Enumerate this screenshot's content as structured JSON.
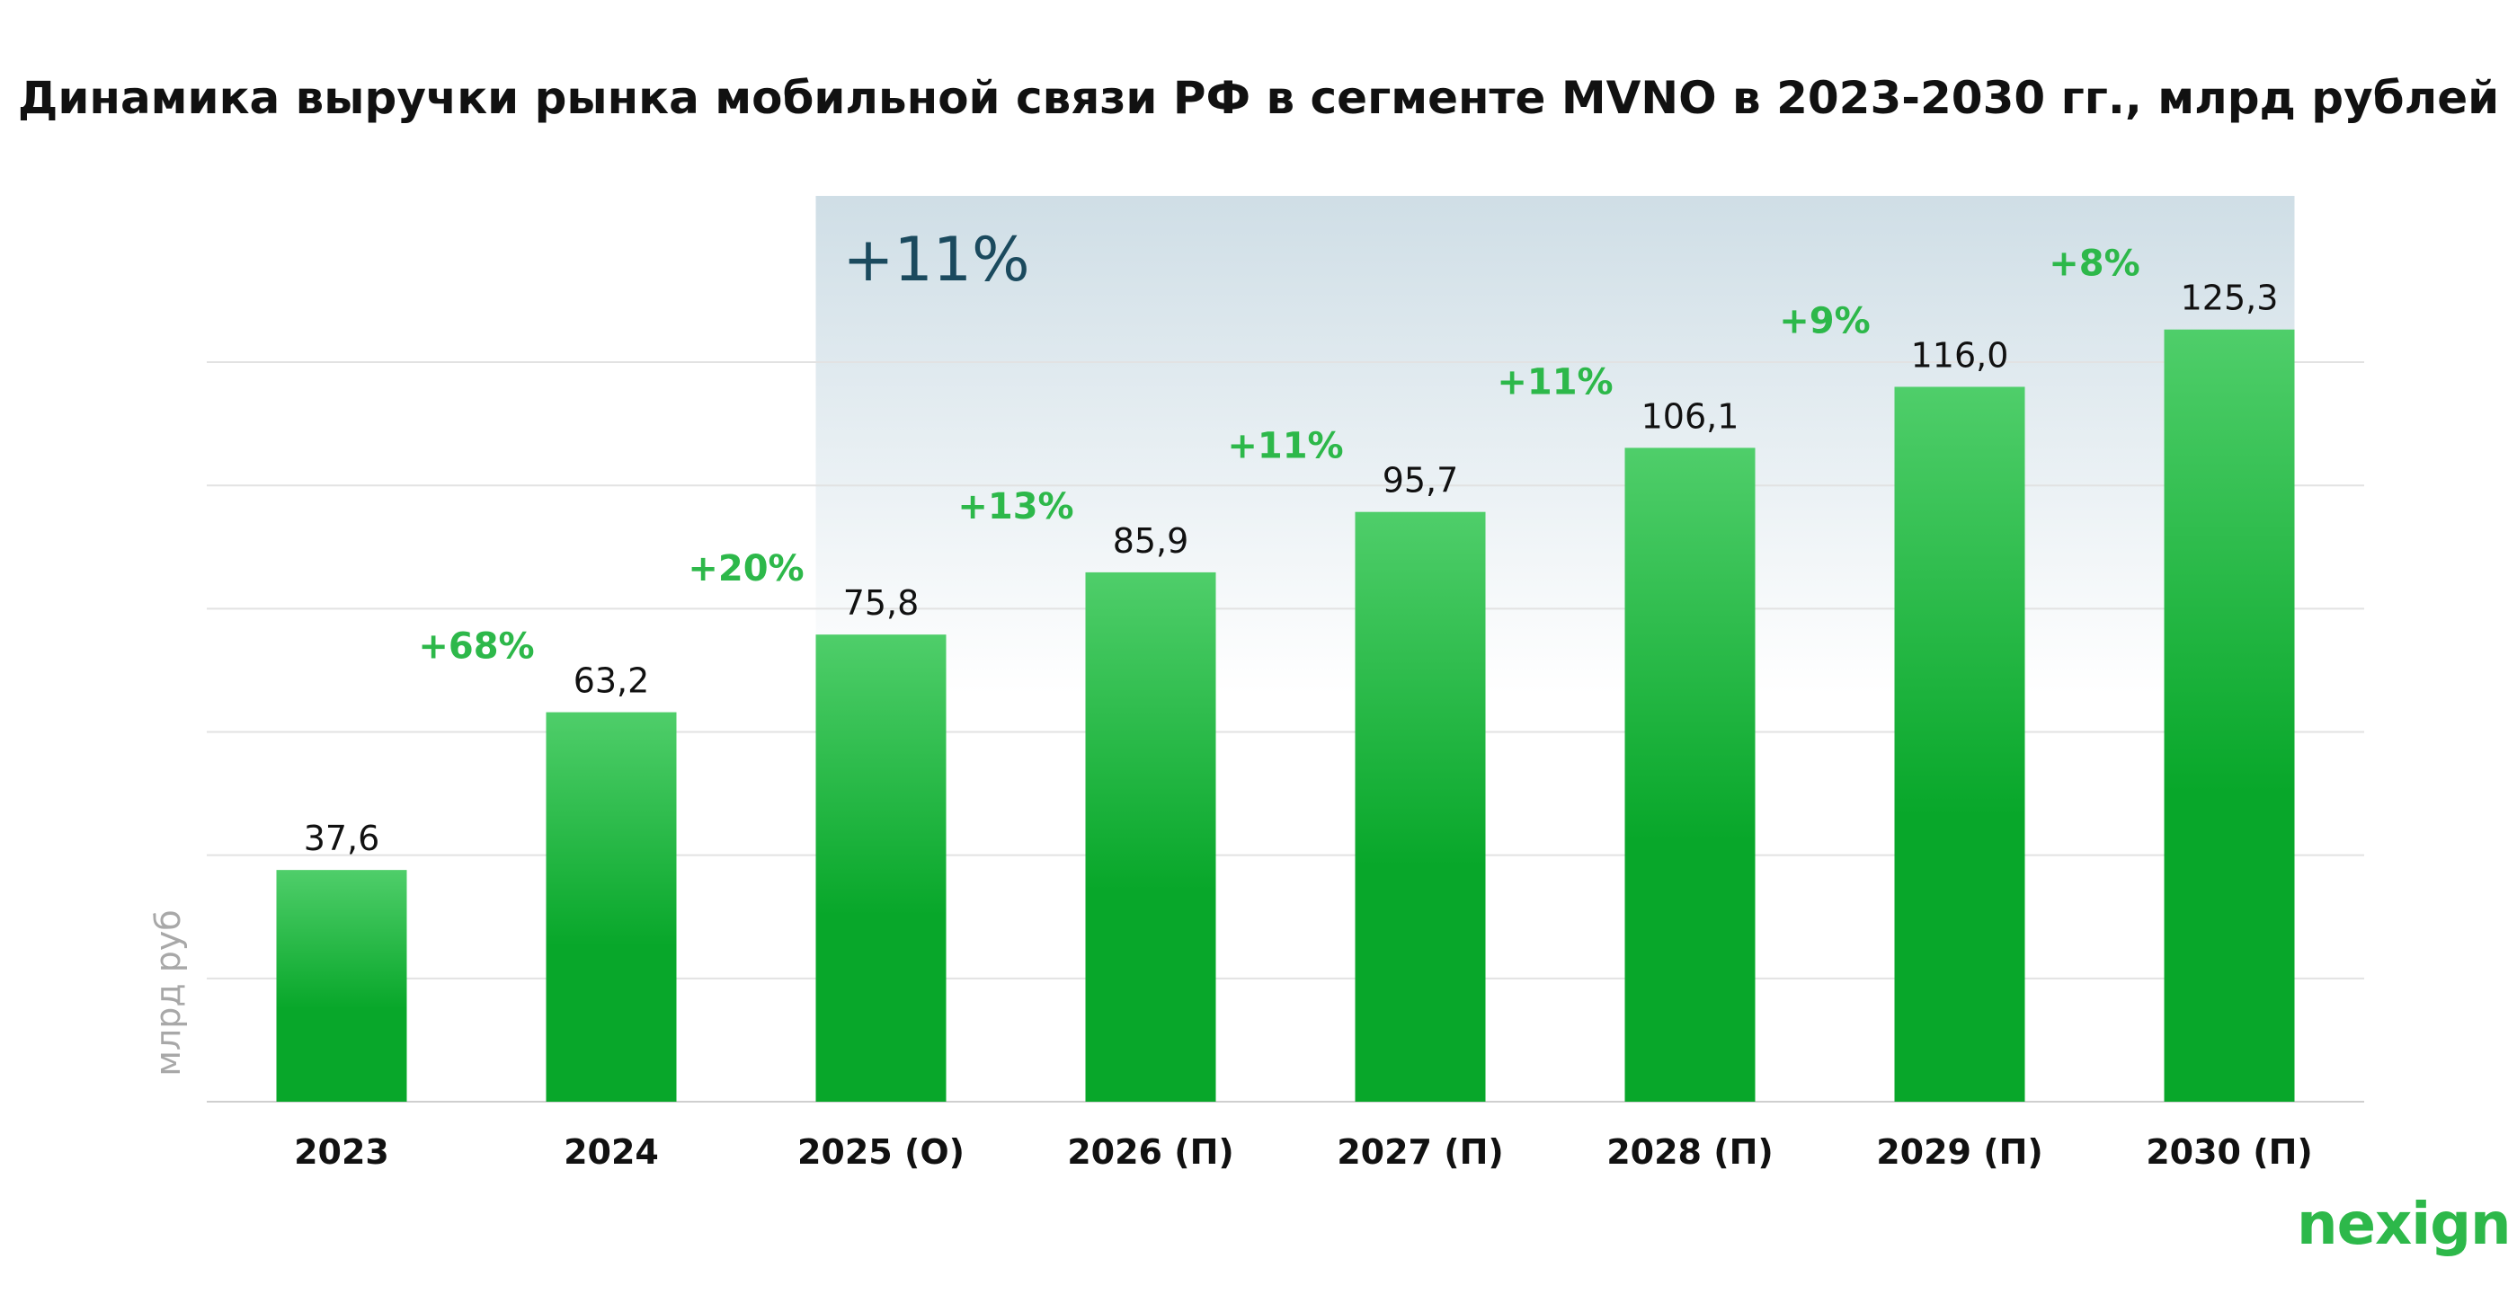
{
  "brand": {
    "logo_text": "nexign",
    "accent_color": "#2db84a",
    "bar_color_top": "#4fce6a",
    "bar_color_bottom": "#08a72a",
    "highlight_color": "#1b4a5e"
  },
  "chart_data": {
    "type": "bar",
    "title": "Динамика выручки рынка мобильной связи РФ в сегменте MVNO в 2023-2030 гг., млрд рублей",
    "ylabel": "млрд руб",
    "xlabel": "",
    "ylim": [
      0,
      150
    ],
    "grid": true,
    "categories": [
      "2023",
      "2024",
      "2025 (О)",
      "2026 (П)",
      "2027 (П)",
      "2028 (П)",
      "2029 (П)",
      "2030 (П)"
    ],
    "values": [
      37.6,
      63.2,
      75.8,
      85.9,
      95.7,
      106.1,
      116.0,
      125.3
    ],
    "value_labels": [
      "37,6",
      "63,2",
      "75,8",
      "85,9",
      "95,7",
      "106,1",
      "116,0",
      "125,3"
    ],
    "growth_labels": [
      "+68%",
      "+20%",
      "+13%",
      "+11%",
      "+11%",
      "+9%",
      "+8%"
    ],
    "highlight": {
      "label": "+11%",
      "from_category": "2025 (О)",
      "to_category": "2030 (П)"
    }
  }
}
